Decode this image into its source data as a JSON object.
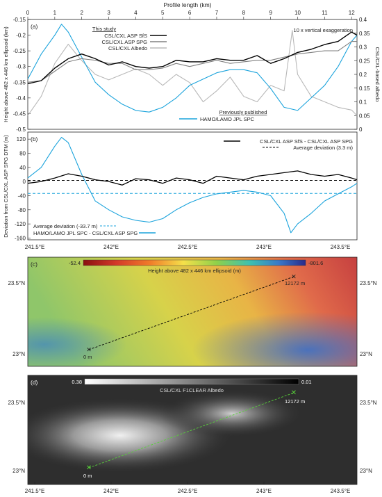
{
  "top_axis": {
    "label": "Profile length (km)",
    "ticks": [
      "0",
      "1",
      "2",
      "3",
      "4",
      "5",
      "6",
      "7",
      "8",
      "9",
      "10",
      "11",
      "12"
    ]
  },
  "panel_a": {
    "tag": "(a)",
    "left_label": "Height above 482 x 446 km ellipsoid (km)",
    "right_label": "CSL/CXL-based albedo",
    "left_ticks": [
      "-0.15",
      "-0.2",
      "-0.25",
      "-0.3",
      "-0.35",
      "-0.4",
      "-0.45",
      "-0.5"
    ],
    "right_ticks": [
      "0.4",
      "0.35",
      "0.3",
      "0.25",
      "0.2",
      "0.15",
      "0.1",
      "0.05",
      "0"
    ],
    "annotation": "10 x vertical exaggeration",
    "legend_heading": "This study",
    "legend_items": [
      "CSL/CXL ASP SfS",
      "CSL/CXL ASP SPG",
      "CSL/CXL Albedo"
    ],
    "legend2_heading": "Previously published",
    "legend2_items": [
      "HAMO/LAMO JPL SPC"
    ]
  },
  "panel_b": {
    "tag": "(b)",
    "left_label": "Deviation from CSL/CXL ASP SPG DTM (m)",
    "left_ticks": [
      "120",
      "80",
      "40",
      "0",
      "-40",
      "-80",
      "-120",
      "-160"
    ],
    "legend_items": [
      "CSL/CXL ASP SfS - CSL/CXL ASP SPG",
      "Average deviation (3.3 m)"
    ],
    "legend2_items": [
      "Average deviation (-33.7 m)",
      "HAMO/LAMO JPL SPC - CSL/CXL ASP SPG"
    ]
  },
  "lon_ticks": [
    "241.5°E",
    "242°E",
    "242.5°E",
    "243°E",
    "243.5°E"
  ],
  "panel_c": {
    "tag": "(c)",
    "colorbar_min": "-52.4",
    "colorbar_max": "-801.6",
    "colorbar_label": "Height above 482 x 446 km ellipsoid (m)",
    "lat_ticks": [
      "23.5°N",
      "23°N"
    ],
    "start_label": "0 m",
    "end_label": "12172 m"
  },
  "panel_d": {
    "tag": "(d)",
    "colorbar_min": "0.38",
    "colorbar_max": "0.01",
    "colorbar_label": "CSL/CXL F1CLEAR Albedo",
    "lat_ticks": [
      "23.5°N",
      "23°N"
    ],
    "start_label": "0 m",
    "end_label": "12172 m"
  },
  "colors": {
    "sfs": "#000000",
    "spg": "#808080",
    "albedo": "#b8b8b8",
    "spc": "#1aa3dc",
    "profile_d": "#58d13a"
  },
  "chart_data": [
    {
      "type": "line",
      "title": "",
      "xlabel": "Profile length (km)",
      "ylabel": "Height above 482 x 446 km ellipsoid (km)",
      "xlim": [
        0,
        12.2
      ],
      "ylim": [
        -0.5,
        -0.15
      ],
      "y2lim": [
        0,
        0.4
      ],
      "series": [
        {
          "name": "CSL/CXL ASP SfS",
          "axis": "left",
          "x": [
            0,
            0.5,
            1,
            1.5,
            2,
            2.5,
            3,
            3.5,
            4,
            4.5,
            5,
            5.5,
            6,
            6.5,
            7,
            7.5,
            8,
            8.5,
            9,
            9.5,
            10,
            10.5,
            11,
            11.5,
            12,
            12.2
          ],
          "y": [
            -0.355,
            -0.345,
            -0.305,
            -0.275,
            -0.26,
            -0.275,
            -0.295,
            -0.285,
            -0.3,
            -0.305,
            -0.3,
            -0.28,
            -0.285,
            -0.285,
            -0.275,
            -0.28,
            -0.28,
            -0.265,
            -0.29,
            -0.275,
            -0.255,
            -0.245,
            -0.23,
            -0.22,
            -0.19,
            -0.2
          ]
        },
        {
          "name": "CSL/CXL ASP SPG",
          "axis": "left",
          "x": [
            0,
            0.5,
            1,
            1.5,
            2,
            2.5,
            3,
            3.5,
            4,
            4.5,
            5,
            5.5,
            6,
            6.5,
            7,
            7.5,
            8,
            8.5,
            9,
            9.5,
            10,
            10.5,
            11,
            11.5,
            12,
            12.2
          ],
          "y": [
            -0.35,
            -0.345,
            -0.315,
            -0.285,
            -0.275,
            -0.28,
            -0.29,
            -0.29,
            -0.31,
            -0.31,
            -0.305,
            -0.29,
            -0.3,
            -0.29,
            -0.28,
            -0.29,
            -0.285,
            -0.28,
            -0.28,
            -0.27,
            -0.26,
            -0.255,
            -0.25,
            -0.25,
            -0.22,
            -0.22
          ]
        },
        {
          "name": "CSL/CXL Albedo",
          "axis": "right",
          "x": [
            0,
            0.5,
            1,
            1.5,
            2,
            2.5,
            3,
            3.5,
            4,
            4.5,
            5,
            5.5,
            6,
            6.5,
            7,
            7.5,
            8,
            8.5,
            9,
            9.5,
            9.8,
            10,
            10.5,
            11,
            11.5,
            12,
            12.2
          ],
          "y": [
            0.05,
            0.12,
            0.24,
            0.31,
            0.25,
            0.2,
            0.18,
            0.2,
            0.22,
            0.2,
            0.16,
            0.2,
            0.17,
            0.1,
            0.14,
            0.19,
            0.12,
            0.1,
            0.16,
            0.14,
            0.36,
            0.2,
            0.12,
            0.1,
            0.08,
            0.07,
            0.05
          ]
        },
        {
          "name": "HAMO/LAMO JPL SPC",
          "axis": "left",
          "x": [
            0,
            0.5,
            1,
            1.25,
            1.5,
            2,
            2.5,
            3,
            3.5,
            4,
            4.5,
            5,
            5.5,
            6,
            6.5,
            7,
            7.5,
            8,
            8.5,
            9,
            9.5,
            10,
            10.5,
            11,
            11.5,
            12,
            12.2
          ],
          "y": [
            -0.34,
            -0.26,
            -0.2,
            -0.165,
            -0.19,
            -0.27,
            -0.35,
            -0.39,
            -0.42,
            -0.44,
            -0.445,
            -0.43,
            -0.4,
            -0.36,
            -0.34,
            -0.32,
            -0.31,
            -0.31,
            -0.32,
            -0.37,
            -0.43,
            -0.44,
            -0.4,
            -0.36,
            -0.3,
            -0.22,
            -0.2
          ]
        }
      ]
    },
    {
      "type": "line",
      "title": "",
      "xlabel": "Profile length (km)",
      "ylabel": "Deviation from CSL/CXL ASP SPG DTM (m)",
      "xlim": [
        0,
        12.2
      ],
      "ylim": [
        -165,
        140
      ],
      "series": [
        {
          "name": "CSL/CXL ASP SfS - CSL/CXL ASP SPG",
          "x": [
            0,
            0.5,
            1,
            1.5,
            2,
            2.5,
            3,
            3.5,
            4,
            4.5,
            5,
            5.5,
            6,
            6.5,
            7,
            7.5,
            8,
            8.5,
            9,
            9.5,
            10,
            10.5,
            11,
            11.5,
            12,
            12.2
          ],
          "y": [
            -5,
            0,
            10,
            22,
            15,
            5,
            0,
            -10,
            8,
            5,
            -5,
            10,
            5,
            -5,
            15,
            10,
            5,
            15,
            20,
            25,
            30,
            20,
            15,
            20,
            10,
            5
          ]
        },
        {
          "name": "Average deviation (3.3 m)",
          "constant": 3.3
        },
        {
          "name": "HAMO/LAMO JPL SPC - CSL/CXL ASP SPG",
          "x": [
            0,
            0.5,
            1,
            1.25,
            1.5,
            2,
            2.5,
            3,
            3.5,
            4,
            4.5,
            5,
            5.5,
            6,
            6.5,
            7,
            7.5,
            8,
            8.5,
            9,
            9.5,
            9.75,
            10,
            10.5,
            11,
            11.5,
            12,
            12.2
          ],
          "y": [
            10,
            40,
            100,
            125,
            110,
            20,
            -55,
            -80,
            -100,
            -110,
            -115,
            -105,
            -80,
            -60,
            -45,
            -35,
            -30,
            -25,
            -30,
            -40,
            -90,
            -145,
            -120,
            -90,
            -55,
            -35,
            -15,
            -5
          ]
        },
        {
          "name": "Average deviation (-33.7 m)",
          "constant": -33.7
        }
      ]
    }
  ]
}
